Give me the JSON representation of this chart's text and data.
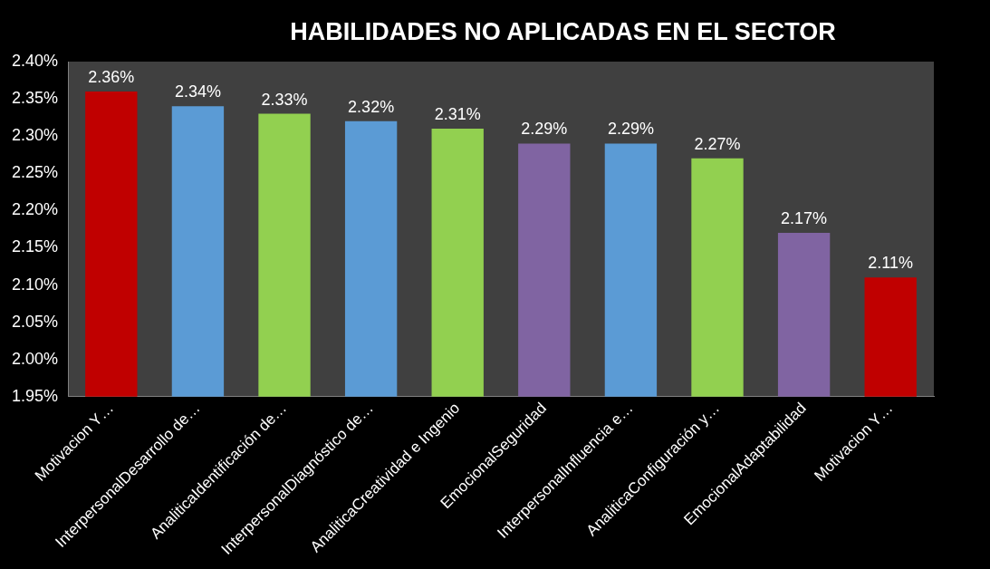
{
  "chart_data": {
    "type": "bar",
    "title": "HABILIDADES NO APLICADAS EN EL SECTOR",
    "categories": [
      "Motivacion Y…",
      "InterpersonalDesarrollo de…",
      "AnaliticaIdentificación de…",
      "InterpersonalDiagnóstico de…",
      "AnaliticaCreatividad e Ingenio",
      "EmocionalSeguridad",
      "InterpersonalInfluencia e…",
      "AnaliticaConfiguración y…",
      "EmocionalAdaptabilidad",
      "Motivacion Y…"
    ],
    "values": [
      2.36,
      2.34,
      2.33,
      2.32,
      2.31,
      2.29,
      2.29,
      2.27,
      2.17,
      2.11
    ],
    "value_labels": [
      "2.36%",
      "2.34%",
      "2.33%",
      "2.32%",
      "2.31%",
      "2.29%",
      "2.29%",
      "2.27%",
      "2.17%",
      "2.11%"
    ],
    "colors": [
      "#c00000",
      "#5b9bd5",
      "#92d050",
      "#5b9bd5",
      "#92d050",
      "#8064a2",
      "#5b9bd5",
      "#92d050",
      "#8064a2",
      "#c00000"
    ],
    "ylim": [
      1.95,
      2.4
    ],
    "yticks": [
      {
        "value": 1.95,
        "label": "1.95%"
      },
      {
        "value": 2.0,
        "label": "2.00%"
      },
      {
        "value": 2.05,
        "label": "2.05%"
      },
      {
        "value": 2.1,
        "label": "2.10%"
      },
      {
        "value": 2.15,
        "label": "2.15%"
      },
      {
        "value": 2.2,
        "label": "2.20%"
      },
      {
        "value": 2.25,
        "label": "2.25%"
      },
      {
        "value": 2.3,
        "label": "2.30%"
      },
      {
        "value": 2.35,
        "label": "2.35%"
      },
      {
        "value": 2.4,
        "label": "2.40%"
      }
    ]
  }
}
